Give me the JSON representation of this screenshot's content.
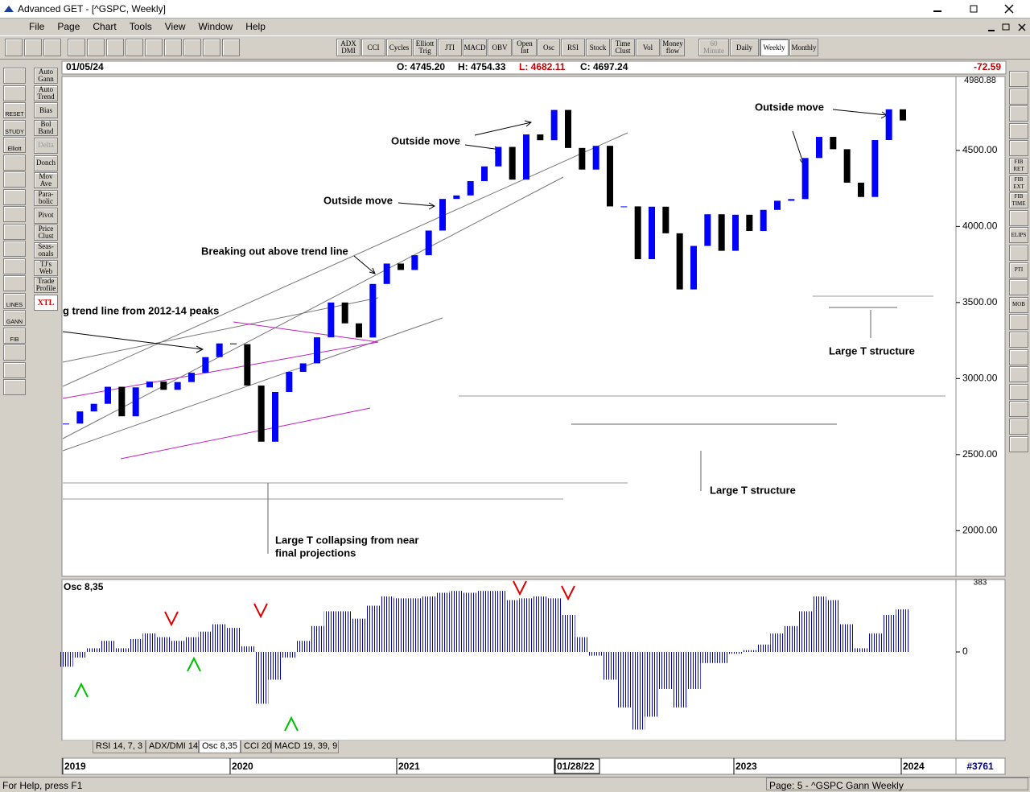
{
  "window": {
    "title": "Advanced GET - [^GSPC, Weekly]"
  },
  "menu": [
    "File",
    "Page",
    "Chart",
    "Tools",
    "View",
    "Window",
    "Help"
  ],
  "toolbar": [
    "ADX DMI",
    "CCI",
    "Cycles",
    "Elliott Trig",
    "JTI",
    "MACD",
    "OBV",
    "Open Int",
    "Osc",
    "RSI",
    "Stock",
    "Time Clust",
    "Vol",
    "Money flow"
  ],
  "timeframes": [
    "60 Minute",
    "Daily",
    "Weekly",
    "Monthly"
  ],
  "left_icons": [
    "RESET",
    "STUDY",
    "Elliott",
    "LINES",
    "GANN",
    "FIB"
  ],
  "studies": [
    "Auto Gann",
    "Auto Trend",
    "Bias",
    "Bol Band",
    "Delta",
    "Donch",
    "Mov Ave",
    "Para-bolic",
    "Pivot",
    "Price Clust",
    "Seas-onals",
    "TJ's Web",
    "Trade Profile",
    "XTL"
  ],
  "right_icons": [
    "FIB RET",
    "FIB EXT",
    "FIB TIME",
    "ELIPS",
    "PTI",
    "MOB"
  ],
  "header": {
    "date": "01/05/24",
    "open": "O: 4745.20",
    "high": "H: 4754.33",
    "low": "L: 4682.11",
    "close": "C: 4697.24",
    "change": "-72.59"
  },
  "price_chart": {
    "type": "candlestick",
    "ylim": [
      1700,
      4980.88
    ],
    "top_label": "4980.88",
    "yticks": [
      {
        "value": 4500,
        "label": "4500.00"
      },
      {
        "value": 4000,
        "label": "4000.00"
      },
      {
        "value": 3500,
        "label": "3500.00"
      },
      {
        "value": 3000,
        "label": "3000.00"
      },
      {
        "value": 2500,
        "label": "2500.00"
      },
      {
        "value": 2000,
        "label": "2000.00"
      }
    ],
    "up_color": "#0000ff",
    "down_color": "#000000",
    "closes": [
      2704,
      2784,
      2834,
      2946,
      2752,
      2942,
      2980,
      2926,
      2977,
      3038,
      3141,
      3231,
      3226,
      2954,
      2585,
      2912,
      3044,
      3100,
      3271,
      3500,
      3363,
      3270,
      3622,
      3756,
      3714,
      3811,
      3973,
      4181,
      4204,
      4298,
      4395,
      4523,
      4308,
      4605,
      4567,
      4766,
      4516,
      4374,
      4530,
      4132,
      4132,
      3785,
      4130,
      3955,
      3586,
      3872,
      4080,
      3840,
      4077,
      3970,
      4109,
      4169,
      4180,
      4450,
      4589,
      4508,
      4288,
      4194,
      4568,
      4770,
      4697
    ],
    "annotations": [
      "Outside move",
      "Outside move",
      "Outside move",
      "Breaking out above trend line",
      "g trend line from 2012-14 peaks",
      "Large T structure",
      "Large T structure",
      "Large T collapsing from near",
      "final projections"
    ]
  },
  "oscillator": {
    "type": "bar",
    "title": "Osc 8,35",
    "ylim": [
      -470,
      383
    ],
    "top_label": "383",
    "yticks": [
      0
    ],
    "color": "#0000cc",
    "values": [
      -80,
      -30,
      20,
      60,
      20,
      70,
      100,
      80,
      60,
      80,
      110,
      150,
      130,
      30,
      -280,
      -150,
      -30,
      60,
      140,
      220,
      220,
      180,
      250,
      300,
      290,
      290,
      300,
      320,
      330,
      320,
      330,
      330,
      280,
      290,
      300,
      290,
      200,
      80,
      -20,
      -150,
      -300,
      -420,
      -350,
      -200,
      -300,
      -200,
      -60,
      -60,
      -10,
      10,
      40,
      100,
      140,
      220,
      300,
      280,
      150,
      20,
      100,
      200,
      230
    ]
  },
  "tabs": [
    "RSI 14, 7, 3",
    "ADX/DMI 14",
    "Osc 8,35",
    "CCI 20",
    "MACD 19, 39, 9"
  ],
  "time_axis": [
    "2019",
    "2020",
    "2021",
    "01/28/22",
    "2023",
    "2024"
  ],
  "bar_count": "#3761",
  "status": {
    "help": "For Help, press F1",
    "page": "Page: 5 - ^GSPC Gann Weekly"
  }
}
